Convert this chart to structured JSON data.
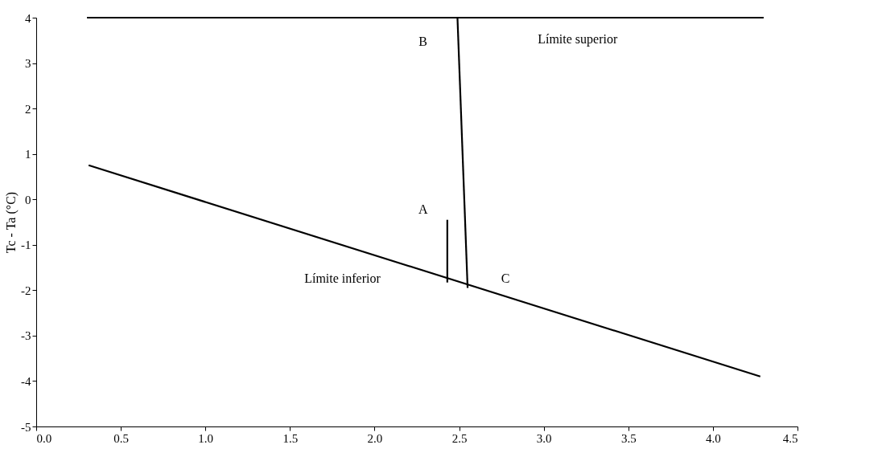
{
  "chart_data": {
    "type": "line",
    "ylabel": "Tc - Ta (°C)",
    "xlim": [
      0.0,
      4.5
    ],
    "xticks": [
      {
        "value": 0,
        "label": "0.0"
      },
      {
        "value": 0.5,
        "label": "0.5"
      },
      {
        "value": 1,
        "label": "1.0"
      },
      {
        "value": 1.5,
        "label": "1.5"
      },
      {
        "value": 2,
        "label": "2.0"
      },
      {
        "value": 2.5,
        "label": "2.5"
      },
      {
        "value": 3,
        "label": "3.0"
      },
      {
        "value": 3.5,
        "label": "3.5"
      },
      {
        "value": 4,
        "label": "4.0"
      },
      {
        "value": 4.5,
        "label": "4.5"
      }
    ],
    "ylim": [
      -5,
      4
    ],
    "yticks": [
      -5,
      -4,
      -3,
      -2,
      -1,
      0,
      1,
      2,
      3,
      4
    ],
    "grid": false,
    "marker": "none",
    "line_style": "solid",
    "series": [
      {
        "color": "#000000",
        "x": [
          0.3,
          4.3
        ],
        "values": [
          4,
          4
        ]
      },
      {
        "color": "#000000",
        "x": [
          0.31,
          4.28
        ],
        "values": [
          0.75,
          -3.9
        ]
      },
      {
        "color": "#000000",
        "x": [
          2.43,
          2.43
        ],
        "values": [
          -0.45,
          -1.83
        ]
      },
      {
        "color": "#000000",
        "x": [
          2.49,
          2.55
        ],
        "values": [
          4,
          -1.95
        ]
      }
    ],
    "annotations": [
      {
        "text": "B",
        "x": 2.49,
        "y": 4
      },
      {
        "text": "Límite superior",
        "x": 3.2,
        "y": 4
      },
      {
        "text": "A",
        "x": 2.43,
        "y": -0.45
      },
      {
        "text": "C",
        "x": 2.55,
        "y": -1.95
      },
      {
        "text": "Límite inferior",
        "x": 2.2,
        "y": -1.46
      }
    ]
  }
}
